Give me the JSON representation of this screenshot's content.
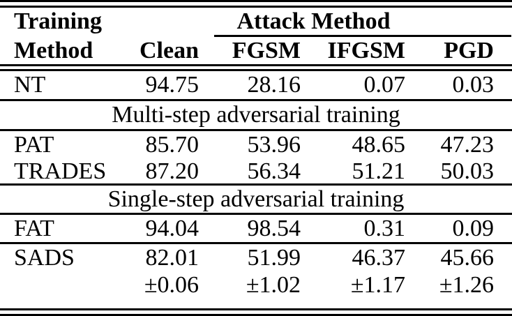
{
  "page": {
    "background_color": "#ffffff",
    "text_color": "#000000",
    "rule_color": "#000000"
  },
  "table": {
    "header": {
      "training": "Training",
      "method": "Method",
      "clean": "Clean",
      "attack_method": "Attack Method",
      "fgsm": "FGSM",
      "ifgsm": "IFGSM",
      "pgd": "PGD"
    },
    "sections": {
      "multi_step": "Multi-step adversarial training",
      "single_step": "Single-step adversarial training"
    },
    "rows": {
      "nt": {
        "method": "NT",
        "clean": "94.75",
        "fgsm": "28.16",
        "ifgsm": "0.07",
        "pgd": "0.03"
      },
      "pat": {
        "method": "PAT",
        "clean": "85.70",
        "fgsm": "53.96",
        "ifgsm": "48.65",
        "pgd": "47.23"
      },
      "trades": {
        "method": "TRADES",
        "clean": "87.20",
        "fgsm": "56.34",
        "ifgsm": "51.21",
        "pgd": "50.03"
      },
      "fat": {
        "method": "FAT",
        "clean": "94.04",
        "fgsm": "98.54",
        "ifgsm": "0.31",
        "pgd": "0.09"
      },
      "sads": {
        "method": "SADS",
        "clean": "82.01",
        "fgsm": "51.99",
        "ifgsm": "46.37",
        "pgd": "45.66"
      },
      "sads_std": {
        "method": "",
        "clean": "±0.06",
        "fgsm": "±1.02",
        "ifgsm": "±1.17",
        "pgd": "±1.26"
      }
    }
  }
}
